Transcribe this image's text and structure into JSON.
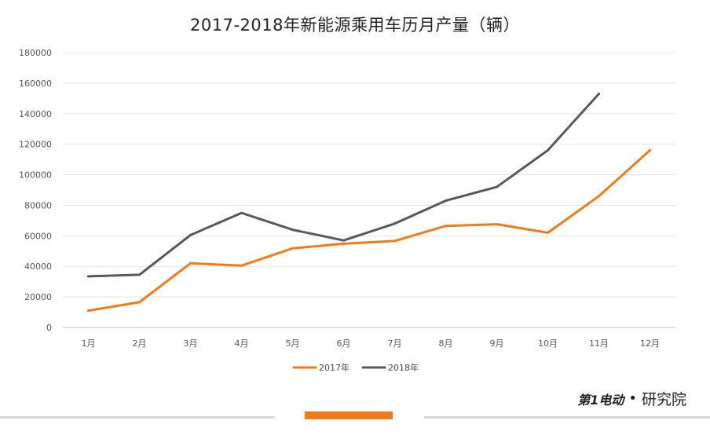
{
  "chart_data": {
    "type": "line",
    "title": "2017-2018年新能源乘用车历月产量（辆）",
    "categories": [
      "1月",
      "2月",
      "3月",
      "4月",
      "5月",
      "6月",
      "7月",
      "8月",
      "9月",
      "10月",
      "11月",
      "12月"
    ],
    "series": [
      {
        "name": "2017年",
        "color": "#f07b1a",
        "values": [
          11000,
          16500,
          42000,
          40500,
          51800,
          54800,
          56600,
          66500,
          67600,
          62000,
          86000,
          116000
        ]
      },
      {
        "name": "2018年",
        "color": "#555a5e",
        "values": [
          33500,
          34500,
          60500,
          75000,
          64000,
          57000,
          68000,
          83000,
          92000,
          116000,
          153000,
          null
        ]
      }
    ],
    "ylim": [
      0,
      180000
    ],
    "yticks": [
      0,
      20000,
      40000,
      60000,
      80000,
      100000,
      120000,
      140000,
      160000,
      180000
    ],
    "ytick_labels": [
      "0",
      "20000",
      "40000",
      "60000",
      "80000",
      "100000",
      "120000",
      "140000",
      "160000",
      "180000"
    ],
    "grid": true,
    "legend": "bottom"
  },
  "branding": {
    "mark": "第1电动",
    "separator": "•",
    "text": "研究院"
  }
}
